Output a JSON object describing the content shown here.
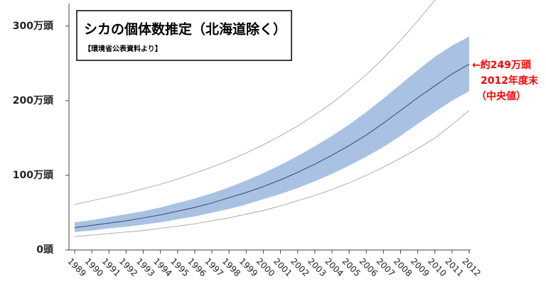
{
  "chart_data": {
    "type": "band",
    "title": "シカの個体数推定（北海道除く）",
    "subtitle": "【環境省公表資料より】",
    "annotation": [
      "←約249万頭",
      "2012年度末",
      "（中央値）"
    ],
    "annotation_color": "#ff0000",
    "x": [
      1989,
      1990,
      1991,
      1992,
      1993,
      1994,
      1995,
      1996,
      1997,
      1998,
      1999,
      2000,
      2001,
      2002,
      2003,
      2004,
      2005,
      2006,
      2007,
      2008,
      2009,
      2010,
      2011,
      2012
    ],
    "xlim": [
      1989,
      2012
    ],
    "xticks": [
      1989,
      1990,
      1991,
      1992,
      1993,
      1994,
      1995,
      1996,
      1997,
      1998,
      1999,
      2000,
      2001,
      2002,
      2003,
      2004,
      2005,
      2006,
      2007,
      2008,
      2009,
      2010,
      2011,
      2012
    ],
    "ylim": [
      0,
      335
    ],
    "yticks": [
      {
        "value": 0,
        "label": "0頭"
      },
      {
        "value": 100,
        "label": "100万頭"
      },
      {
        "value": 200,
        "label": "200万頭"
      },
      {
        "value": 300,
        "label": "300万頭"
      }
    ],
    "median": {
      "color": "#3a4668",
      "values": [
        30,
        33,
        36,
        39,
        43,
        47,
        52,
        57,
        63,
        70,
        77,
        85,
        94,
        104,
        115,
        127,
        140,
        154,
        170,
        187,
        204,
        220,
        236,
        249
      ]
    },
    "band_inner": {
      "color": "#a9c2e4",
      "upper": [
        37,
        40,
        44,
        48,
        52,
        57,
        63,
        69,
        76,
        84,
        93,
        103,
        114,
        126,
        139,
        153,
        168,
        185,
        203,
        222,
        241,
        259,
        274,
        286
      ],
      "lower": [
        24,
        26,
        29,
        31,
        34,
        37,
        41,
        45,
        50,
        55,
        61,
        68,
        75,
        83,
        92,
        102,
        113,
        125,
        138,
        153,
        169,
        185,
        200,
        213
      ]
    },
    "band_outer": {
      "color": "#9a9a9a",
      "upper": [
        61,
        66,
        71,
        76,
        82,
        88,
        95,
        103,
        111,
        120,
        130,
        141,
        153,
        166,
        181,
        197,
        215,
        235,
        257,
        281,
        307,
        335,
        365,
        398
      ],
      "lower": [
        18,
        20,
        22,
        24,
        26,
        29,
        32,
        35,
        39,
        43,
        48,
        53,
        59,
        66,
        73,
        81,
        90,
        100,
        111,
        123,
        136,
        150,
        168,
        187
      ]
    }
  }
}
